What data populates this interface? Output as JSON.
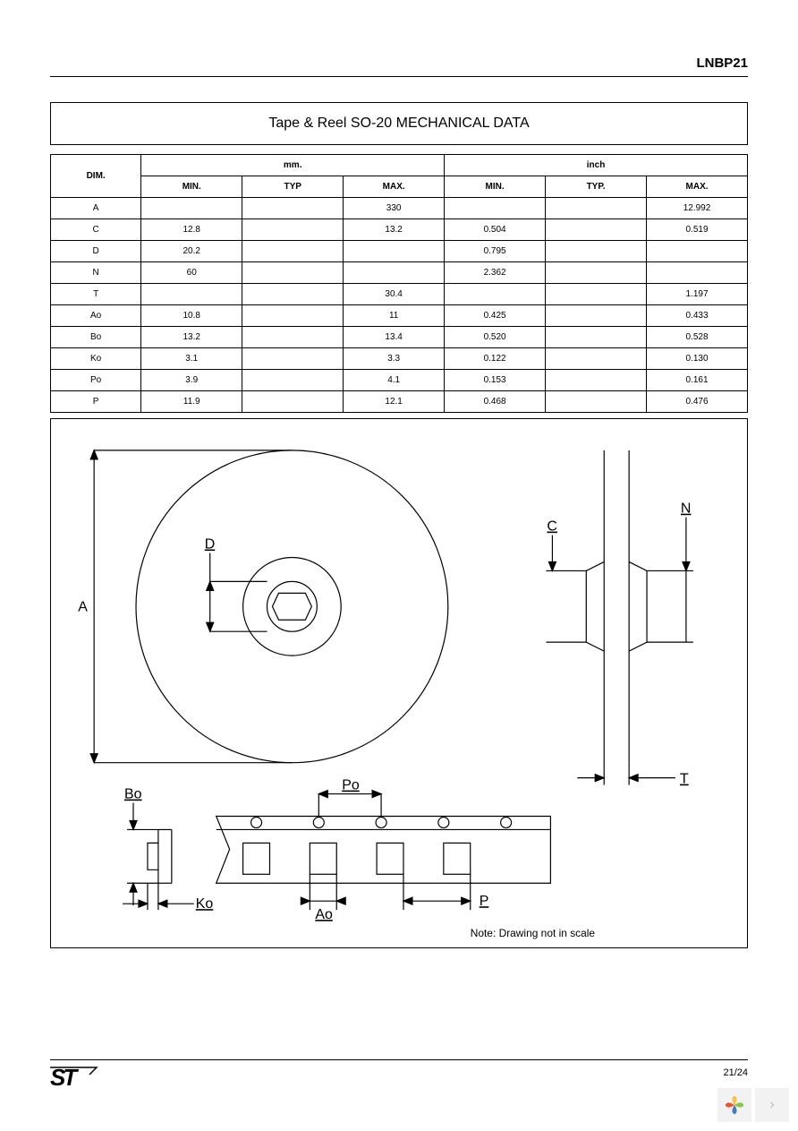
{
  "part_number": "LNBP21",
  "title": "Tape & Reel SO-20 MECHANICAL DATA",
  "headers": {
    "dim": "DIM.",
    "mm": "mm.",
    "inch": "inch",
    "min": "MIN.",
    "typ": "TYP",
    "typ_dot": "TYP.",
    "max": "MAX."
  },
  "rows": [
    {
      "dim": "A",
      "mm_min": "",
      "mm_typ": "",
      "mm_max": "330",
      "in_min": "",
      "in_typ": "",
      "in_max": "12.992"
    },
    {
      "dim": "C",
      "mm_min": "12.8",
      "mm_typ": "",
      "mm_max": "13.2",
      "in_min": "0.504",
      "in_typ": "",
      "in_max": "0.519"
    },
    {
      "dim": "D",
      "mm_min": "20.2",
      "mm_typ": "",
      "mm_max": "",
      "in_min": "0.795",
      "in_typ": "",
      "in_max": ""
    },
    {
      "dim": "N",
      "mm_min": "60",
      "mm_typ": "",
      "mm_max": "",
      "in_min": "2.362",
      "in_typ": "",
      "in_max": ""
    },
    {
      "dim": "T",
      "mm_min": "",
      "mm_typ": "",
      "mm_max": "30.4",
      "in_min": "",
      "in_typ": "",
      "in_max": "1.197"
    },
    {
      "dim": "Ao",
      "mm_min": "10.8",
      "mm_typ": "",
      "mm_max": "11",
      "in_min": "0.425",
      "in_typ": "",
      "in_max": "0.433"
    },
    {
      "dim": "Bo",
      "mm_min": "13.2",
      "mm_typ": "",
      "mm_max": "13.4",
      "in_min": "0.520",
      "in_typ": "",
      "in_max": "0.528"
    },
    {
      "dim": "Ko",
      "mm_min": "3.1",
      "mm_typ": "",
      "mm_max": "3.3",
      "in_min": "0.122",
      "in_typ": "",
      "in_max": "0.130"
    },
    {
      "dim": "Po",
      "mm_min": "3.9",
      "mm_typ": "",
      "mm_max": "4.1",
      "in_min": "0.153",
      "in_typ": "",
      "in_max": "0.161"
    },
    {
      "dim": "P",
      "mm_min": "11.9",
      "mm_typ": "",
      "mm_max": "12.1",
      "in_min": "0.468",
      "in_typ": "",
      "in_max": "0.476"
    }
  ],
  "diagram_labels": {
    "A": "A",
    "D": "D",
    "C": "C",
    "N": "N",
    "T": "T",
    "Bo": "Bo",
    "Ko": "Ko",
    "Ao": "Ao",
    "Po": "Po",
    "P": "P",
    "note": "Note: Drawing not in scale"
  },
  "page_number": "21/24",
  "colors": {
    "flower_yellow": "#f6c344",
    "flower_green": "#8bc34a",
    "flower_red": "#e8533a",
    "flower_blue": "#4a7bb5"
  }
}
